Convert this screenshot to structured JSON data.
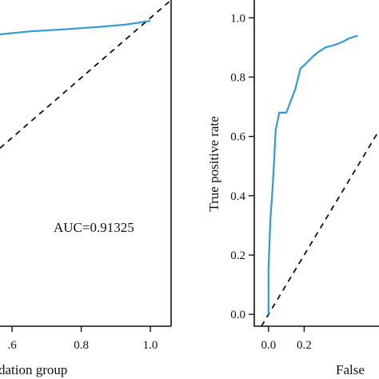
{
  "colors": {
    "curve": "#2f9bd6",
    "axis": "#111111",
    "reference": "#111111"
  },
  "chart_data": [
    {
      "type": "line",
      "panel": "left",
      "xlabel": "dation group",
      "ylabel": "",
      "xlim": [
        0.565,
        1.06
      ],
      "ylim": [
        -0.03,
        1.06
      ],
      "xticks": [
        0.6,
        0.8,
        1.0
      ],
      "xtick_labels": [
        ".6",
        "0.8",
        "1.0"
      ],
      "annotation": "AUC=0.91325",
      "reference_line": {
        "x": [
          0.565,
          1.06
        ],
        "y": [
          0.565,
          1.06
        ]
      },
      "series": [
        {
          "x": [
            0.565,
            0.65,
            0.75,
            0.85,
            0.93,
            0.97,
            0.99,
            1.0
          ],
          "y": [
            0.945,
            0.955,
            0.962,
            0.97,
            0.978,
            0.985,
            0.989,
            0.99
          ]
        }
      ]
    },
    {
      "type": "line",
      "panel": "right",
      "xlabel": "False",
      "ylabel": "True positive rate",
      "xlim": [
        -0.08,
        0.62
      ],
      "ylim": [
        -0.04,
        1.06
      ],
      "xticks": [
        0.0,
        0.2
      ],
      "xtick_labels": [
        "0.0",
        "0.2"
      ],
      "yticks": [
        0.0,
        0.2,
        0.4,
        0.6,
        0.8,
        1.0
      ],
      "ytick_labels": [
        "0.0",
        "0.2",
        "0.4",
        "0.6",
        "0.8",
        "1.0"
      ],
      "reference_line": {
        "x": [
          -0.04,
          0.62
        ],
        "y": [
          -0.04,
          0.62
        ]
      },
      "series": [
        {
          "x": [
            0.0,
            0.0,
            0.01,
            0.02,
            0.03,
            0.04,
            0.05,
            0.06,
            0.1,
            0.15,
            0.18,
            0.2,
            0.25,
            0.28,
            0.32,
            0.35,
            0.38,
            0.42,
            0.45,
            0.5
          ],
          "y": [
            0.0,
            0.15,
            0.32,
            0.4,
            0.5,
            0.62,
            0.65,
            0.68,
            0.68,
            0.76,
            0.83,
            0.84,
            0.87,
            0.885,
            0.9,
            0.905,
            0.91,
            0.92,
            0.93,
            0.94
          ]
        }
      ]
    }
  ]
}
